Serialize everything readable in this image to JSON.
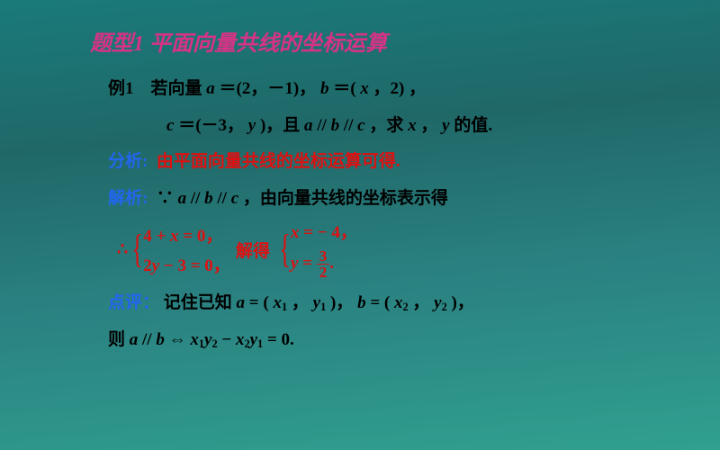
{
  "colors": {
    "title": "#d63384",
    "problem": "#000000",
    "analysis_label": "#2266ee",
    "analysis_text": "#dd1111",
    "solution_label": "#2266ee",
    "solution_text": "#000000",
    "system": "#dd1111",
    "comment_label": "#2266ee",
    "comment_text": "#000000"
  },
  "title": "题型1  平面向量共线的坐标运算",
  "problem": {
    "label": "例1",
    "line1_a": "若向量",
    "line1_b": "a",
    "line1_c": "＝(2，－1)，",
    "line1_d": "b",
    "line1_e": " ＝(",
    "line1_f": "x",
    "line1_g": "，2) ，",
    "line2_a": "c",
    "line2_b": "＝(－3，",
    "line2_c": "y",
    "line2_d": ")，且",
    "line2_e": "a",
    "line2_f": " // ",
    "line2_g": "b",
    "line2_h": " // ",
    "line2_i": "c",
    "line2_j": "，求",
    "line2_k": "x",
    "line2_l": "，",
    "line2_m": "y",
    "line2_n": " 的值."
  },
  "analysis": {
    "label": "分析:",
    "text": "由平面向量共线的坐标运算可得."
  },
  "solution": {
    "label": "解析:",
    "because": "∵",
    "t1": "a",
    "t2": " // ",
    "t3": "b",
    "t4": " // ",
    "t5": "c",
    "rest": "，由向量共线的坐标表示得",
    "therefore": "∴",
    "eq1": "4 + ",
    "eq1x": "x",
    "eq1b": " = 0，",
    "eq2": "2",
    "eq2y": "y",
    "eq2b": " − 3 = 0，",
    "solve": "解得",
    "r1a": "x",
    "r1b": " = − 4，",
    "r2a": "y",
    "r2b": " = ",
    "frac_n": "3",
    "frac_d": "2",
    "r2c": "."
  },
  "comment": {
    "label": "点评：",
    "p1": "记住已知 ",
    "a": "a",
    "p2": " = (",
    "x1": "x",
    "s1": "1",
    "p3": "，",
    "y1": "y",
    "p4": ")，",
    "b": "b",
    "p5": " = (",
    "x2": "x",
    "s2": "2",
    "p6": "，",
    "y2": "y",
    "p7": ")，",
    "line2_a": "则 ",
    "line2_b": "a",
    "line2_c": " // ",
    "line2_d": "b",
    "line2_e": "⇔",
    "line2_f": "x",
    "line2_g": "y",
    "line2_h": " − ",
    "line2_i": "x",
    "line2_j": "y",
    "line2_k": " = 0."
  }
}
